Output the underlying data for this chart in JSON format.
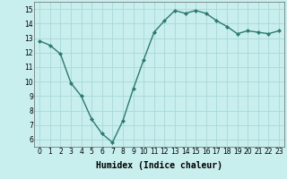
{
  "x": [
    0,
    1,
    2,
    3,
    4,
    5,
    6,
    7,
    8,
    9,
    10,
    11,
    12,
    13,
    14,
    15,
    16,
    17,
    18,
    19,
    20,
    21,
    22,
    23
  ],
  "y": [
    12.8,
    12.5,
    11.9,
    9.9,
    9.0,
    7.4,
    6.4,
    5.8,
    7.3,
    9.5,
    11.5,
    13.4,
    14.2,
    14.9,
    14.7,
    14.9,
    14.7,
    14.2,
    13.8,
    13.3,
    13.5,
    13.4,
    13.3,
    13.5
  ],
  "line_color": "#2d7a6e",
  "marker": "D",
  "marker_size": 2.0,
  "bg_color": "#c8eeee",
  "grid_color": "#a8d8d8",
  "xlabel": "Humidex (Indice chaleur)",
  "ylim": [
    5.5,
    15.5
  ],
  "xlim": [
    -0.5,
    23.5
  ],
  "yticks": [
    6,
    7,
    8,
    9,
    10,
    11,
    12,
    13,
    14,
    15
  ],
  "xticks": [
    0,
    1,
    2,
    3,
    4,
    5,
    6,
    7,
    8,
    9,
    10,
    11,
    12,
    13,
    14,
    15,
    16,
    17,
    18,
    19,
    20,
    21,
    22,
    23
  ],
  "tick_label_fontsize": 5.5,
  "xlabel_fontsize": 7.0,
  "line_width": 1.0
}
